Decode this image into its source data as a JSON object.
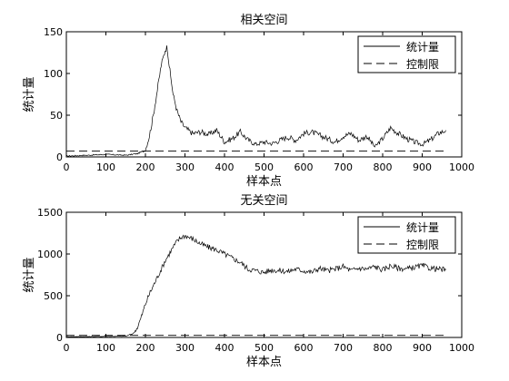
{
  "chart_data": [
    {
      "type": "line",
      "title": "相关空间",
      "xlabel": "样本点",
      "ylabel": "统计量",
      "xlim": [
        0,
        1000
      ],
      "ylim": [
        0,
        150
      ],
      "xticks": [
        0,
        100,
        200,
        300,
        400,
        500,
        600,
        700,
        800,
        900,
        1000
      ],
      "yticks": [
        0,
        50,
        100,
        150
      ],
      "grid": false,
      "legend_position": "top-right",
      "series": [
        {
          "name": "统计量",
          "style": "solid",
          "color": "#000000",
          "x": [
            0,
            50,
            100,
            150,
            180,
            200,
            210,
            220,
            230,
            240,
            250,
            255,
            260,
            270,
            280,
            290,
            300,
            320,
            340,
            360,
            380,
            400,
            420,
            440,
            460,
            480,
            500,
            520,
            540,
            560,
            580,
            600,
            620,
            640,
            660,
            680,
            700,
            720,
            740,
            760,
            780,
            800,
            820,
            840,
            860,
            880,
            900,
            920,
            940,
            960
          ],
          "y": [
            1,
            2,
            3,
            2,
            4,
            8,
            25,
            50,
            80,
            110,
            128,
            132,
            110,
            75,
            55,
            42,
            35,
            28,
            30,
            27,
            32,
            18,
            22,
            30,
            20,
            15,
            18,
            16,
            20,
            24,
            20,
            28,
            30,
            26,
            22,
            18,
            25,
            28,
            20,
            25,
            12,
            22,
            35,
            28,
            22,
            18,
            15,
            20,
            28,
            32
          ]
        },
        {
          "name": "控制限",
          "style": "dashed",
          "color": "#000000",
          "x": [
            0,
            960
          ],
          "y": [
            7,
            7
          ]
        }
      ]
    },
    {
      "type": "line",
      "title": "无关空间",
      "xlabel": "样本点",
      "ylabel": "统计量",
      "xlim": [
        0,
        1000
      ],
      "ylim": [
        0,
        1500
      ],
      "xticks": [
        0,
        100,
        200,
        300,
        400,
        500,
        600,
        700,
        800,
        900,
        1000
      ],
      "yticks": [
        0,
        500,
        1000,
        1500
      ],
      "grid": false,
      "legend_position": "top-right",
      "series": [
        {
          "name": "统计量",
          "style": "solid",
          "color": "#000000",
          "x": [
            0,
            50,
            100,
            150,
            170,
            180,
            190,
            200,
            210,
            220,
            230,
            240,
            250,
            260,
            270,
            280,
            290,
            300,
            320,
            340,
            360,
            380,
            400,
            420,
            440,
            460,
            480,
            500,
            520,
            540,
            560,
            580,
            600,
            620,
            640,
            660,
            680,
            700,
            720,
            740,
            760,
            780,
            800,
            820,
            840,
            860,
            880,
            900,
            920,
            940,
            960
          ],
          "y": [
            10,
            10,
            12,
            15,
            50,
            120,
            250,
            400,
            520,
            620,
            720,
            820,
            920,
            1000,
            1080,
            1150,
            1200,
            1220,
            1180,
            1120,
            1080,
            1050,
            1000,
            950,
            900,
            820,
            800,
            780,
            810,
            800,
            790,
            820,
            800,
            780,
            830,
            800,
            820,
            850,
            800,
            830,
            820,
            850,
            810,
            860,
            830,
            820,
            840,
            860,
            830,
            820,
            810
          ]
        },
        {
          "name": "控制限",
          "style": "dashed",
          "color": "#000000",
          "x": [
            0,
            960
          ],
          "y": [
            25,
            25
          ]
        }
      ]
    }
  ]
}
